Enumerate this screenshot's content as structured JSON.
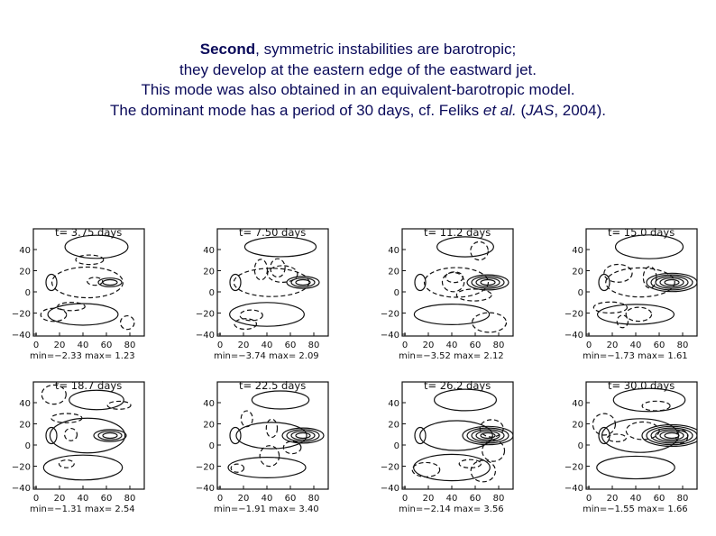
{
  "caption": {
    "line1": {
      "strong": "Second",
      "rest": ", symmetric instabilities are barotropic;"
    },
    "line2": "they develop at the eastern edge of the eastward jet.",
    "line3": "This mode was also obtained in an equivalent-barotropic model.",
    "line4": {
      "pre": "The dominant mode has a period of 30 days, cf. Feliks ",
      "etal": "et al.",
      "mid": " (",
      "journal": "JAS",
      "post": ", 2004)."
    }
  },
  "axes": {
    "x_ticks": [
      "0",
      "20",
      "40",
      "60",
      "80"
    ],
    "y_ticks": [
      "40",
      "20",
      "0",
      "−20",
      "−40"
    ]
  },
  "panels": [
    {
      "title": "t= 3.75  days",
      "min": "−2.33",
      "max": "1.23"
    },
    {
      "title": "t= 7.50  days",
      "min": "−3.74",
      "max": "2.09"
    },
    {
      "title": "t= 11.2  days",
      "min": "−3.52",
      "max": "2.12"
    },
    {
      "title": "t= 15.0  days",
      "min": "−1.73",
      "max": "1.61"
    },
    {
      "title": "t= 18.7  days",
      "min": "−1.31",
      "max": "2.54"
    },
    {
      "title": "t= 22.5  days",
      "min": "−1.91",
      "max": "3.40"
    },
    {
      "title": "t= 26.2  days",
      "min": "−2.14",
      "max": "3.56"
    },
    {
      "title": "t= 30.0  days",
      "min": "−1.55",
      "max": "1.66"
    }
  ],
  "legend": {
    "min_label": "min=",
    "max_label": "max="
  },
  "colors": {
    "text": "#0a0a5a",
    "plot": "#111111",
    "background": "#ffffff"
  }
}
